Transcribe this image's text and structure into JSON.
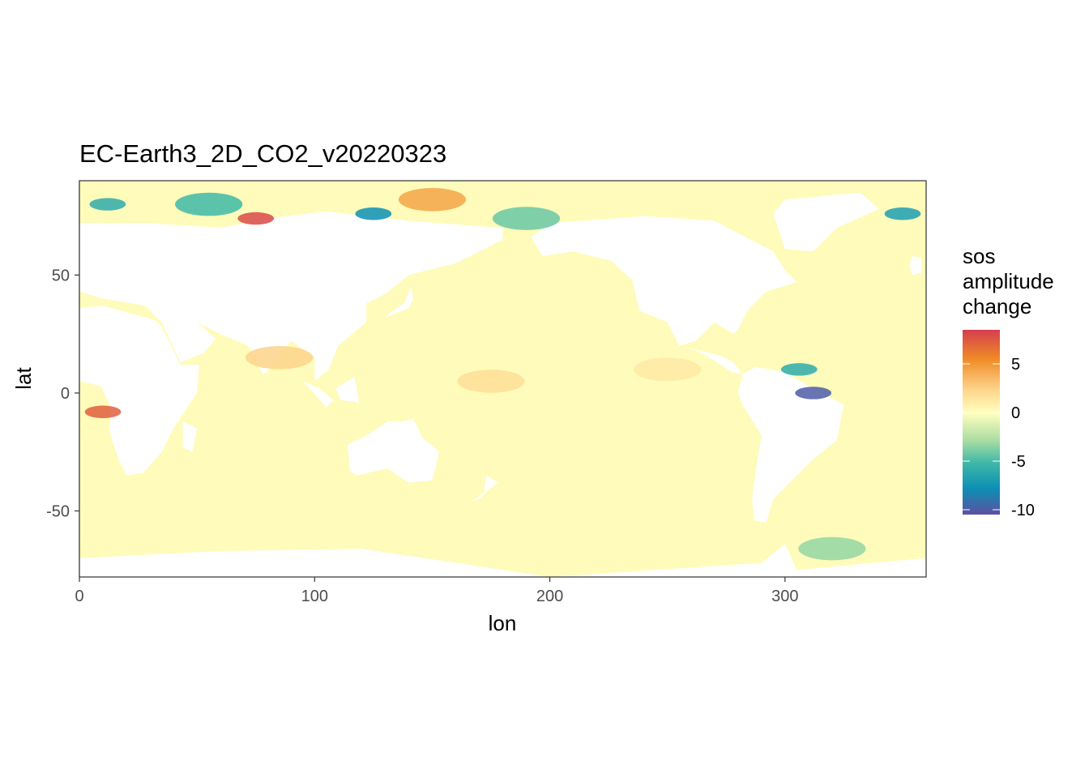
{
  "chart_data": {
    "type": "heatmap",
    "title": "EC-Earth3_2D_CO2_v20220323",
    "xlabel": "lon",
    "ylabel": "lat",
    "xlim": [
      0,
      360
    ],
    "ylim": [
      -78,
      90
    ],
    "x_ticks": [
      0,
      100,
      200,
      300
    ],
    "y_ticks": [
      -50,
      0,
      50
    ],
    "grid": true,
    "legend": {
      "title_lines": [
        "sos",
        "amplitude",
        "change"
      ],
      "position": "right",
      "range": [
        -10.5,
        8.5
      ],
      "ticks": [
        5,
        0,
        -5,
        -10
      ],
      "colors": {
        "top": "#d53e4f",
        "orange": "#f08c26",
        "light": "#fee08b",
        "mid": "#ffffbf",
        "green": "#9cd8a0",
        "teal": "#1aa1a5",
        "blue": "#1d7cb0",
        "bottom": "#5e4fa2"
      }
    },
    "ocean_base_value": 0.2,
    "land_color": "#ffffff",
    "features": [
      {
        "lon": 10,
        "lat": -8,
        "value": 7
      },
      {
        "lon": 12,
        "lat": 80,
        "value": -6
      },
      {
        "lon": 55,
        "lat": 80,
        "value": -5
      },
      {
        "lon": 75,
        "lat": 74,
        "value": 8
      },
      {
        "lon": 125,
        "lat": 76,
        "value": -8
      },
      {
        "lon": 150,
        "lat": 82,
        "value": 4
      },
      {
        "lon": 190,
        "lat": 74,
        "value": -4
      },
      {
        "lon": 306,
        "lat": 10,
        "value": -6
      },
      {
        "lon": 312,
        "lat": 0,
        "value": -10
      },
      {
        "lon": 350,
        "lat": 76,
        "value": -7
      },
      {
        "lon": 320,
        "lat": -66,
        "value": -3
      },
      {
        "lon": 85,
        "lat": 15,
        "value": 2
      },
      {
        "lon": 175,
        "lat": 5,
        "value": 1.5
      },
      {
        "lon": 250,
        "lat": 10,
        "value": 1
      }
    ]
  }
}
